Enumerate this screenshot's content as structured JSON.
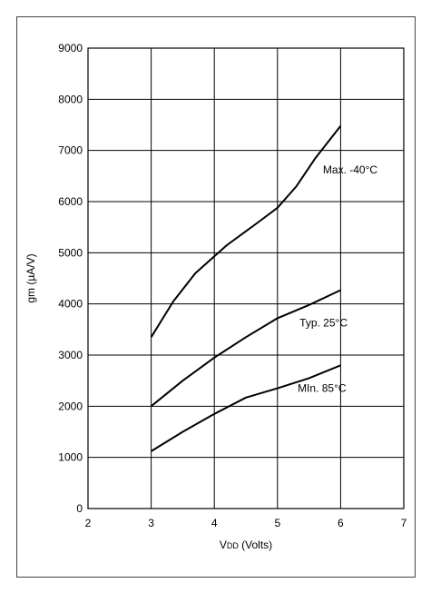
{
  "chart_data": {
    "type": "line",
    "xlabel": "VDD (Volts)",
    "xlabel_sub": "DD",
    "xlabel_main": "V",
    "xlabel_rest": " (Volts)",
    "ylabel": "gm (µA/V)",
    "xlim": [
      2,
      7
    ],
    "ylim": [
      0,
      9000
    ],
    "x_ticks": [
      2,
      3,
      4,
      5,
      6,
      7
    ],
    "y_ticks": [
      0,
      1000,
      2000,
      3000,
      4000,
      5000,
      6000,
      7000,
      8000,
      9000
    ],
    "grid": true,
    "series": [
      {
        "name": "Max. -40°C",
        "x": [
          3.0,
          3.35,
          3.7,
          4.2,
          4.7,
          5.0,
          5.3,
          5.6,
          6.0
        ],
        "y": [
          3350,
          4050,
          4600,
          5150,
          5600,
          5880,
          6300,
          6850,
          7480
        ]
      },
      {
        "name": "Typ. 25°C",
        "x": [
          3.0,
          3.5,
          4.0,
          4.5,
          5.0,
          5.5,
          6.0
        ],
        "y": [
          2000,
          2500,
          2950,
          3350,
          3720,
          3980,
          4270
        ]
      },
      {
        "name": "MIn. 85°C",
        "x": [
          3.0,
          3.5,
          4.0,
          4.5,
          5.0,
          5.5,
          6.0
        ],
        "y": [
          1120,
          1500,
          1850,
          2170,
          2350,
          2550,
          2800
        ]
      }
    ]
  }
}
